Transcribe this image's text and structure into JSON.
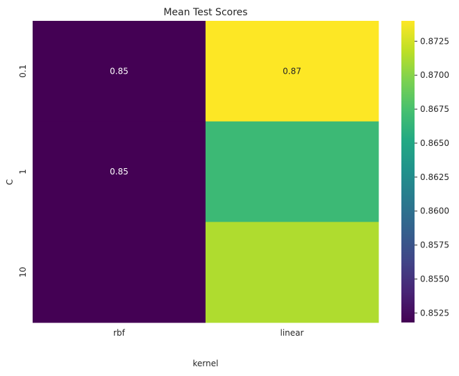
{
  "chart_data": {
    "type": "heatmap",
    "title": "Mean Test Scores",
    "xlabel": "kernel",
    "ylabel": "C",
    "x_categories": [
      "rbf",
      "linear"
    ],
    "y_categories": [
      "0.1",
      "1",
      "10"
    ],
    "values": [
      [
        0.8518,
        0.874
      ],
      [
        0.8518,
        0.8668
      ],
      [
        0.8518,
        0.8713
      ]
    ],
    "annotations": [
      [
        "0.85",
        "0.87"
      ],
      [
        "0.85",
        ""
      ],
      [
        "",
        ""
      ]
    ],
    "colormap": "viridis",
    "colorbar": {
      "vmin": 0.8518,
      "vmax": 0.874,
      "ticks": [
        0.8525,
        0.855,
        0.8575,
        0.86,
        0.8625,
        0.865,
        0.8675,
        0.87,
        0.8725
      ],
      "tick_labels": [
        "0.8525",
        "0.8550",
        "0.8575",
        "0.8600",
        "0.8625",
        "0.8650",
        "0.8675",
        "0.8700",
        "0.8725"
      ]
    },
    "grid": false
  }
}
